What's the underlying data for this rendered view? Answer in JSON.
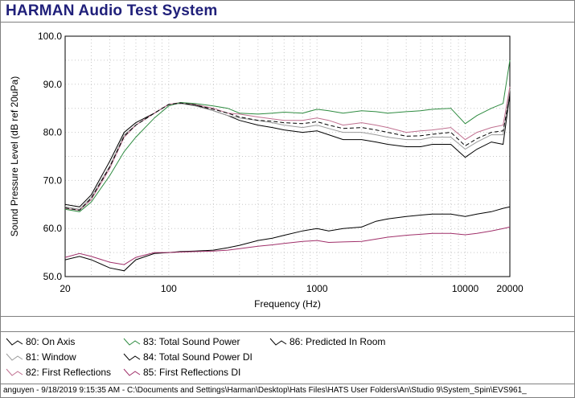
{
  "app": {
    "title": "HARMAN Audio Test System"
  },
  "legend": [
    {
      "label": "80: On Axis",
      "color": "#000000"
    },
    {
      "label": "81: Window",
      "color": "#9a9a9a"
    },
    {
      "label": "82: First Reflections",
      "color": "#c07090"
    },
    {
      "label": "83: Total Sound Power",
      "color": "#2e8b40"
    },
    {
      "label": "84: Total Sound Power DI",
      "color": "#000000"
    },
    {
      "label": "85: First Reflections DI",
      "color": "#a0306a"
    },
    {
      "label": "86: Predicted In Room",
      "color": "#000000"
    }
  ],
  "status_bar": {
    "text": "anguyen - 9/18/2019 9:15:35 AM - C:\\Documents and Settings\\Harman\\Desktop\\Hats Files\\HATS User Folders\\An\\Studio 9\\System_Spin\\EVS961_"
  },
  "chart_data": {
    "type": "line",
    "xlabel": "Frequency (Hz)",
    "ylabel": "Sound Pressure Level (dB ref 20uPa)",
    "x_scale": "log",
    "xlim": [
      20,
      20000
    ],
    "ylim": [
      50,
      100
    ],
    "x_ticks": [
      "20",
      "100",
      "1000",
      "10000",
      "20000"
    ],
    "y_ticks": [
      "50.0",
      "60.0",
      "70.0",
      "80.0",
      "90.0",
      "100.0"
    ],
    "grid": true,
    "legend_position": "bottom",
    "x": [
      20,
      25,
      30,
      40,
      50,
      60,
      80,
      100,
      120,
      150,
      200,
      250,
      300,
      400,
      500,
      600,
      800,
      1000,
      1200,
      1500,
      2000,
      2500,
      3000,
      4000,
      5000,
      6000,
      8000,
      10000,
      12000,
      15000,
      18000,
      20000
    ],
    "series": [
      {
        "name": "80: On Axis",
        "color": "#000000",
        "values": [
          65,
          64.5,
          67,
          74,
          80,
          82,
          84,
          85.8,
          86,
          85.7,
          84.5,
          83.5,
          82.5,
          81.5,
          81,
          80.5,
          80,
          80.3,
          79.5,
          78.5,
          78.5,
          78,
          77.5,
          77,
          77,
          77.5,
          77.5,
          74.8,
          76.5,
          78,
          77.5,
          88
        ]
      },
      {
        "name": "81: Window",
        "color": "#9a9a9a",
        "values": [
          64.5,
          64,
          66.5,
          73,
          79.5,
          81.5,
          84,
          85.8,
          86,
          85.5,
          84.5,
          83.5,
          83,
          82.5,
          82,
          81.5,
          81,
          81.5,
          80.8,
          80,
          80,
          79.5,
          79,
          78.5,
          78.5,
          79,
          79,
          76.5,
          78,
          79.5,
          79.5,
          89
        ]
      },
      {
        "name": "82: First Reflections",
        "color": "#c07090",
        "values": [
          64.2,
          63.8,
          66,
          72.5,
          79,
          81.5,
          84,
          85.8,
          86.2,
          85.8,
          85,
          84,
          83.8,
          83.2,
          82.8,
          82.5,
          82.5,
          83,
          82.5,
          81.5,
          82,
          81.5,
          81,
          80,
          80.3,
          80.5,
          81,
          78.5,
          80,
          81,
          81.5,
          89.5
        ]
      },
      {
        "name": "83: Total Sound Power",
        "color": "#2e8b40",
        "values": [
          64,
          63.5,
          65.5,
          71,
          76,
          79,
          83,
          85.5,
          86.2,
          86,
          85.5,
          85,
          84,
          83.8,
          84,
          84.2,
          84,
          84.8,
          84.5,
          84,
          84.5,
          84.3,
          84,
          84.3,
          84.5,
          84.8,
          85,
          81.8,
          83.5,
          85,
          86,
          95
        ]
      },
      {
        "name": "84: Total Sound Power DI",
        "color": "#000000",
        "values": [
          53.5,
          54.2,
          53.5,
          51.8,
          51.2,
          53.5,
          54.8,
          55,
          55.2,
          55.3,
          55.5,
          56,
          56.5,
          57.5,
          58,
          58.6,
          59.5,
          60,
          59.5,
          60,
          60.3,
          61.5,
          62,
          62.5,
          62.8,
          63,
          63,
          62.5,
          63,
          63.5,
          64.2,
          64.5
        ]
      },
      {
        "name": "85: First Reflections DI",
        "color": "#a0306a",
        "values": [
          54,
          54.8,
          54.2,
          53,
          52.5,
          54,
          55,
          55,
          55.1,
          55.2,
          55.3,
          55.5,
          55.8,
          56.3,
          56.6,
          56.9,
          57.3,
          57.5,
          57.1,
          57.2,
          57.3,
          57.8,
          58.2,
          58.6,
          58.8,
          59,
          59,
          58.7,
          59,
          59.5,
          60,
          60.3
        ]
      },
      {
        "name": "86: Predicted In Room",
        "color": "#000000",
        "dashed": true,
        "values": [
          64.3,
          63.8,
          66.3,
          72.8,
          79.2,
          81.5,
          84,
          85.8,
          86.1,
          85.7,
          84.8,
          84,
          83.2,
          82.5,
          82.3,
          82,
          81.8,
          82.2,
          81.5,
          80.8,
          81,
          80.5,
          80,
          79.2,
          79.3,
          79.6,
          80,
          77.2,
          78.7,
          80,
          80.3,
          87.5
        ]
      }
    ]
  }
}
